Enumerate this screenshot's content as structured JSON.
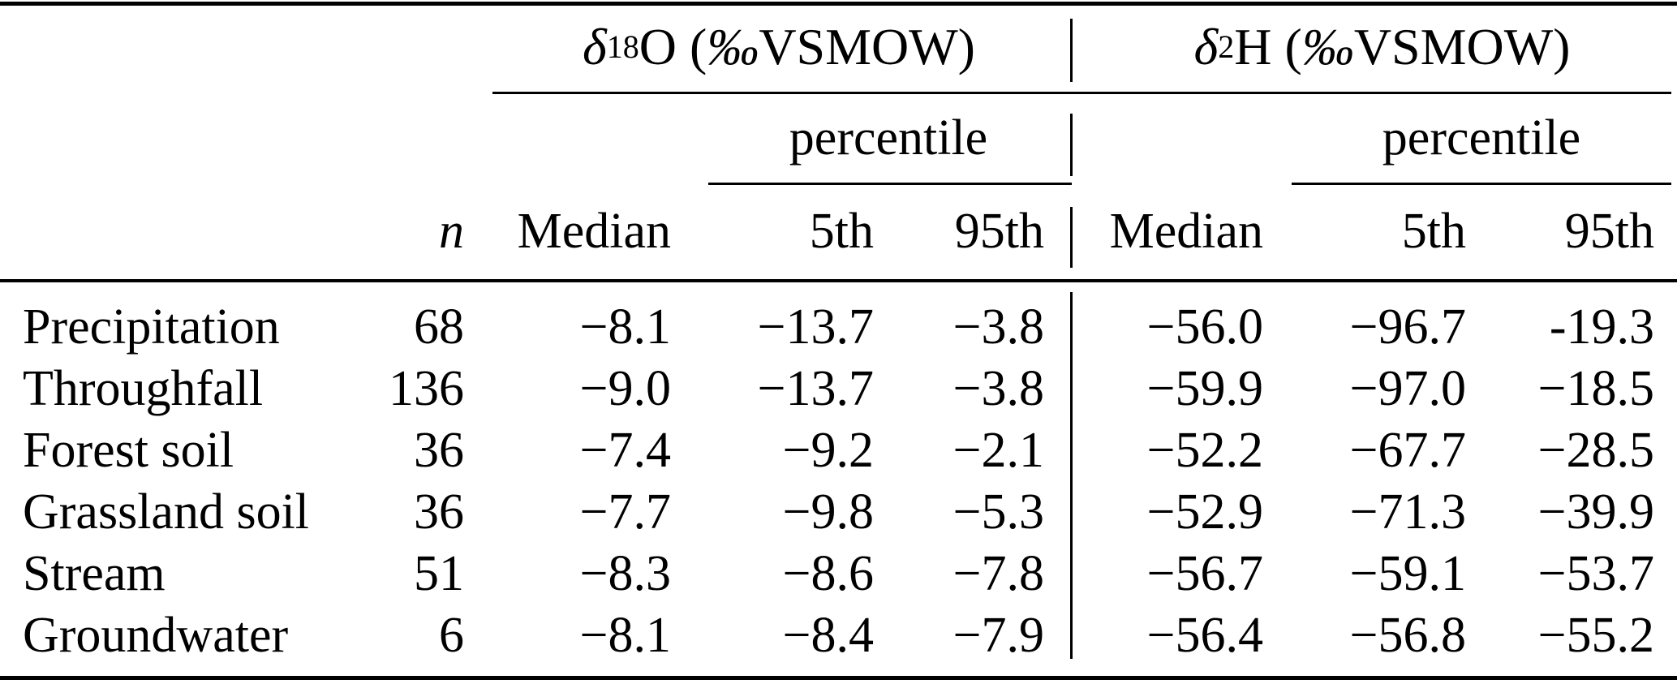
{
  "table": {
    "groups": [
      {
        "symbol": "δ",
        "sup": "18",
        "element": "O",
        "unit_open": "(",
        "unit_permil": "‰",
        "unit_rest": " VSMOW)",
        "percentile_label": "percentile"
      },
      {
        "symbol": "δ",
        "sup": "2",
        "element": "H",
        "unit_open": "(",
        "unit_permil": "‰",
        "unit_rest": " VSMOW)",
        "percentile_label": "percentile"
      }
    ],
    "column_headers": {
      "n": "n",
      "median_o18": "Median",
      "p5_o18": "5th",
      "p95_o18": "95th",
      "median_h2": "Median",
      "p5_h2": "5th",
      "p95_h2": "95th"
    },
    "rows": [
      {
        "label": "Precipitation",
        "n": "68",
        "cells": [
          "−8.1",
          "−13.7",
          "−3.8",
          "−56.0",
          "−96.7",
          "-19.3"
        ]
      },
      {
        "label": "Throughfall",
        "n": "136",
        "cells": [
          "−9.0",
          "−13.7",
          "−3.8",
          "−59.9",
          "−97.0",
          "−18.5"
        ]
      },
      {
        "label": "Forest soil",
        "n": "36",
        "cells": [
          "−7.4",
          "−9.2",
          "−2.1",
          "−52.2",
          "−67.7",
          "−28.5"
        ]
      },
      {
        "label": "Grassland soil",
        "n": "36",
        "cells": [
          "−7.7",
          "−9.8",
          "−5.3",
          "−52.9",
          "−71.3",
          "−39.9"
        ]
      },
      {
        "label": "Stream",
        "n": "51",
        "cells": [
          "−8.3",
          "−8.6",
          "−7.8",
          "−56.7",
          "−59.1",
          "−53.7"
        ]
      },
      {
        "label": "Groundwater",
        "n": "6",
        "cells": [
          "−8.1",
          "−8.4",
          "−7.9",
          "−56.4",
          "−56.8",
          "−55.2"
        ]
      }
    ]
  }
}
